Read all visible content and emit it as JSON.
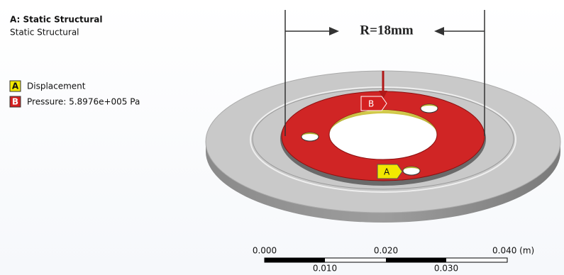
{
  "header": {
    "title": "A: Static Structural",
    "subtitle": "Static Structural"
  },
  "legend": [
    {
      "letter": "A",
      "label": "Displacement"
    },
    {
      "letter": "B",
      "label": "Pressure: 5.8976e+005 Pa"
    }
  ],
  "dimension": {
    "label": "R=18mm"
  },
  "model_tags": {
    "pressure": "B",
    "displacement": "A"
  },
  "scale_bar": {
    "top_labels": [
      "0.000",
      "0.020",
      "0.040 (m)"
    ],
    "bottom_labels": [
      "0.010",
      "0.030"
    ]
  }
}
